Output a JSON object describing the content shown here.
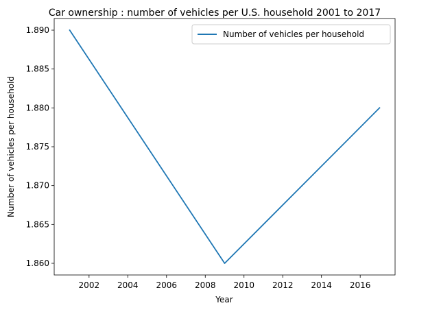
{
  "chart_data": {
    "type": "line",
    "title": "Car ownership : number of vehicles per U.S. household 2001 to 2017",
    "xlabel": "Year",
    "ylabel": "Number of vehicles per household",
    "xlim": [
      2000.2,
      2017.8
    ],
    "ylim": [
      1.8585,
      1.8915
    ],
    "x_ticks": [
      2002,
      2004,
      2006,
      2008,
      2010,
      2012,
      2014,
      2016
    ],
    "x_tick_labels": [
      "2002",
      "2004",
      "2006",
      "2008",
      "2010",
      "2012",
      "2014",
      "2016"
    ],
    "y_ticks": [
      1.86,
      1.865,
      1.87,
      1.875,
      1.88,
      1.885,
      1.89
    ],
    "y_tick_labels": [
      "1.860",
      "1.865",
      "1.870",
      "1.875",
      "1.880",
      "1.885",
      "1.890"
    ],
    "grid": false,
    "legend_position": "top-right",
    "series": [
      {
        "name": "Number of vehicles per household",
        "color": "#1f77b4",
        "x": [
          2001,
          2009,
          2017
        ],
        "y": [
          1.89,
          1.86,
          1.88
        ]
      }
    ]
  }
}
